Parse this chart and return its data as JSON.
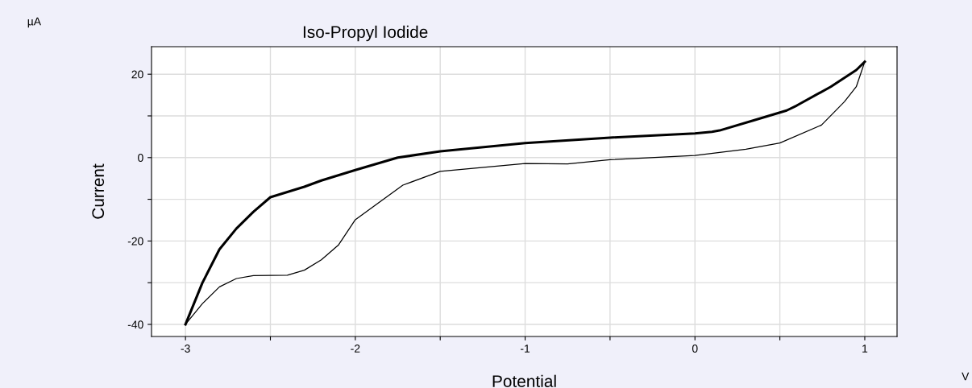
{
  "chart_data": {
    "type": "line",
    "title": "Iso-Propyl Iodide",
    "xlabel": "Potential",
    "ylabel": "Current",
    "annotations": [
      "µA",
      "V"
    ],
    "xlim": [
      -3.2,
      1.19
    ],
    "ylim": [
      -42.9,
      26.6
    ],
    "xticks": [
      -3,
      {
        "value": -2.5,
        "label": null
      },
      -2,
      {
        "value": -1.5,
        "label": null
      },
      -1,
      {
        "value": -0.5,
        "label": null
      },
      0,
      {
        "value": 0.5,
        "label": null
      },
      1
    ],
    "yticks": [
      -40,
      {
        "value": -30,
        "label": null
      },
      -20,
      {
        "value": -10,
        "label": null
      },
      0,
      {
        "value": 10,
        "label": null
      },
      20
    ],
    "grid": true,
    "legend": false,
    "marker": "none",
    "line_style": "solid",
    "series": [
      {
        "color": "#000000",
        "x": [
          1,
          0.95,
          0.8,
          0.6,
          0.54,
          0.35,
          0.145,
          0.1,
          0,
          -0.5,
          -1,
          -1.5,
          -1.75,
          -2,
          -2.2,
          -2.3,
          -2.5,
          -2.6,
          -2.7,
          -2.8,
          -2.9,
          -3
        ],
        "values": [
          23,
          21,
          17,
          12.5,
          11.3,
          9,
          6.5,
          6.2,
          5.8,
          4.8,
          3.5,
          1.5,
          0,
          -3,
          -5.5,
          -7,
          -9.5,
          -13,
          -17,
          -22,
          -30,
          -40
        ]
      },
      {
        "color": "#000000",
        "x": [
          -3,
          -2.9,
          -2.8,
          -2.7,
          -2.6,
          -2.4,
          -2.3,
          -2.2,
          -2.1,
          -2,
          -1.72,
          -1.5,
          -1,
          -0.75,
          -0.5,
          0,
          0.3,
          0.5,
          0.745,
          0.88,
          0.95,
          1
        ],
        "values": [
          -40,
          -35,
          -31,
          -29,
          -28.3,
          -28.2,
          -27,
          -24.5,
          -21,
          -14.9,
          -6.6,
          -3.3,
          -1.4,
          -1.5,
          -0.5,
          0.5,
          2,
          3.5,
          7.8,
          13.4,
          17,
          23
        ]
      }
    ]
  }
}
